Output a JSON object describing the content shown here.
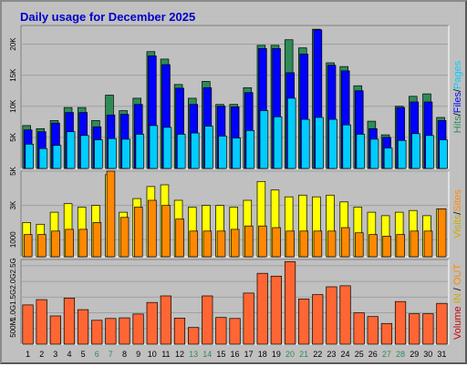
{
  "chart_data": {
    "title": "Daily usage for December 2025",
    "type": "bar",
    "x": [
      "1",
      "2",
      "3",
      "4",
      "5",
      "6",
      "7",
      "8",
      "9",
      "10",
      "11",
      "12",
      "13",
      "14",
      "15",
      "16",
      "17",
      "18",
      "19",
      "20",
      "21",
      "22",
      "23",
      "24",
      "25",
      "26",
      "27",
      "28",
      "29",
      "30",
      "31"
    ],
    "weekend_days": [
      "6",
      "7",
      "13",
      "14",
      "20",
      "21",
      "27",
      "28"
    ],
    "colors": {
      "hits": "#2e8b57",
      "files": "#0000ff",
      "pages": "#00ccff",
      "visits": "#ffff00",
      "sites": "#ff8800",
      "kbytes": "#ff6633",
      "weekday_label": "#000000",
      "weekend_label": "#2e8b57",
      "title": "#0000cc"
    },
    "panels": [
      {
        "name": "traffic",
        "ymax": 23000,
        "ticks": [
          {
            "v": 5000,
            "label": "5K"
          },
          {
            "v": 10000,
            "label": "10K"
          },
          {
            "v": 15000,
            "label": "15K"
          },
          {
            "v": 20000,
            "label": "20K"
          }
        ],
        "legend": [
          {
            "text": "Hits",
            "color": "#2e8b57"
          },
          {
            "text": "/",
            "color": "#000000"
          },
          {
            "text": "Files",
            "color": "#0000ff"
          },
          {
            "text": "/",
            "color": "#000000"
          },
          {
            "text": "Pages",
            "color": "#00ccff"
          }
        ],
        "series": [
          {
            "name": "Hits",
            "key": "hits",
            "values": [
              6900,
              6400,
              7700,
              9800,
              9800,
              7700,
              11800,
              9300,
              11300,
              18800,
              17600,
              13500,
              11300,
              14000,
              10300,
              10300,
              13000,
              19800,
              19800,
              20700,
              19400,
              22400,
              17000,
              16400,
              13300,
              7600,
              5400,
              10000,
              11600,
              12000,
              8200
            ]
          },
          {
            "name": "Files",
            "key": "files",
            "values": [
              6200,
              5900,
              7300,
              9000,
              9000,
              6700,
              8600,
              8700,
              10300,
              18100,
              16700,
              12900,
              10300,
              13000,
              10000,
              9900,
              12200,
              19300,
              19300,
              15400,
              18400,
              22300,
              16600,
              15700,
              12500,
              6400,
              5000,
              9800,
              10700,
              10700,
              7700
            ]
          },
          {
            "name": "Pages",
            "key": "pages",
            "values": [
              3900,
              3200,
              3700,
              5900,
              5300,
              4600,
              4800,
              4700,
              5500,
              6900,
              6600,
              5500,
              5700,
              6800,
              5200,
              4900,
              6100,
              9300,
              8300,
              11300,
              7900,
              8200,
              7900,
              7000,
              5500,
              4700,
              3300,
              4500,
              5600,
              5300,
              4600
            ]
          }
        ]
      },
      {
        "name": "visitors",
        "ymax": 5000,
        "ticks": [
          {
            "v": 1000,
            "label": "1000"
          },
          {
            "v": 3000,
            "label": "3K"
          },
          {
            "v": 5000,
            "label": "5K"
          }
        ],
        "legend": [
          {
            "text": "Visits",
            "color": "#ccaa00"
          },
          {
            "text": "/",
            "color": "#000000"
          },
          {
            "text": "Sites",
            "color": "#ff8800"
          }
        ],
        "series": [
          {
            "name": "Visits",
            "key": "visits",
            "values": [
              2000,
              1900,
              2600,
              3100,
              2900,
              3000,
              4800,
              2600,
              3400,
              4100,
              4200,
              3300,
              2900,
              3000,
              3000,
              2900,
              3300,
              4400,
              3900,
              3500,
              3600,
              3500,
              3600,
              3200,
              2900,
              2600,
              2400,
              2600,
              2700,
              2400,
              2800
            ]
          },
          {
            "name": "Sites",
            "key": "sites",
            "values": [
              1300,
              1300,
              1500,
              1600,
              1600,
              2000,
              5000,
              2300,
              2900,
              3300,
              3000,
              2200,
              1500,
              1500,
              1500,
              1600,
              1800,
              1800,
              1700,
              1500,
              1500,
              1500,
              1500,
              1700,
              1400,
              1300,
              1200,
              1300,
              1500,
              1500,
              2800
            ]
          }
        ]
      },
      {
        "name": "volume",
        "ymax": 2700,
        "ticks": [
          {
            "v": 500,
            "label": "500M"
          },
          {
            "v": 1000,
            "label": "1.0G"
          },
          {
            "v": 1500,
            "label": "1.5G"
          },
          {
            "v": 2000,
            "label": "2.0G"
          },
          {
            "v": 2500,
            "label": "2.5G"
          }
        ],
        "legend": [
          {
            "text": "Volume",
            "color": "#cc0000"
          },
          {
            "text": "  ",
            "color": "#000000"
          },
          {
            "text": "IN",
            "color": "#ccaa00"
          },
          {
            "text": " / ",
            "color": "#000000"
          },
          {
            "text": "OUT",
            "color": "#ff8800"
          }
        ],
        "series": [
          {
            "name": "Volume",
            "key": "kbytes",
            "values": [
              1250,
              1420,
              900,
              1470,
              1100,
              760,
              820,
              840,
              960,
              1330,
              1540,
              830,
              530,
              1540,
              850,
              820,
              1630,
              2260,
              2170,
              2630,
              1440,
              1580,
              1830,
              1860,
              1000,
              880,
              660,
              1360,
              970,
              970,
              1300
            ]
          }
        ]
      }
    ]
  }
}
